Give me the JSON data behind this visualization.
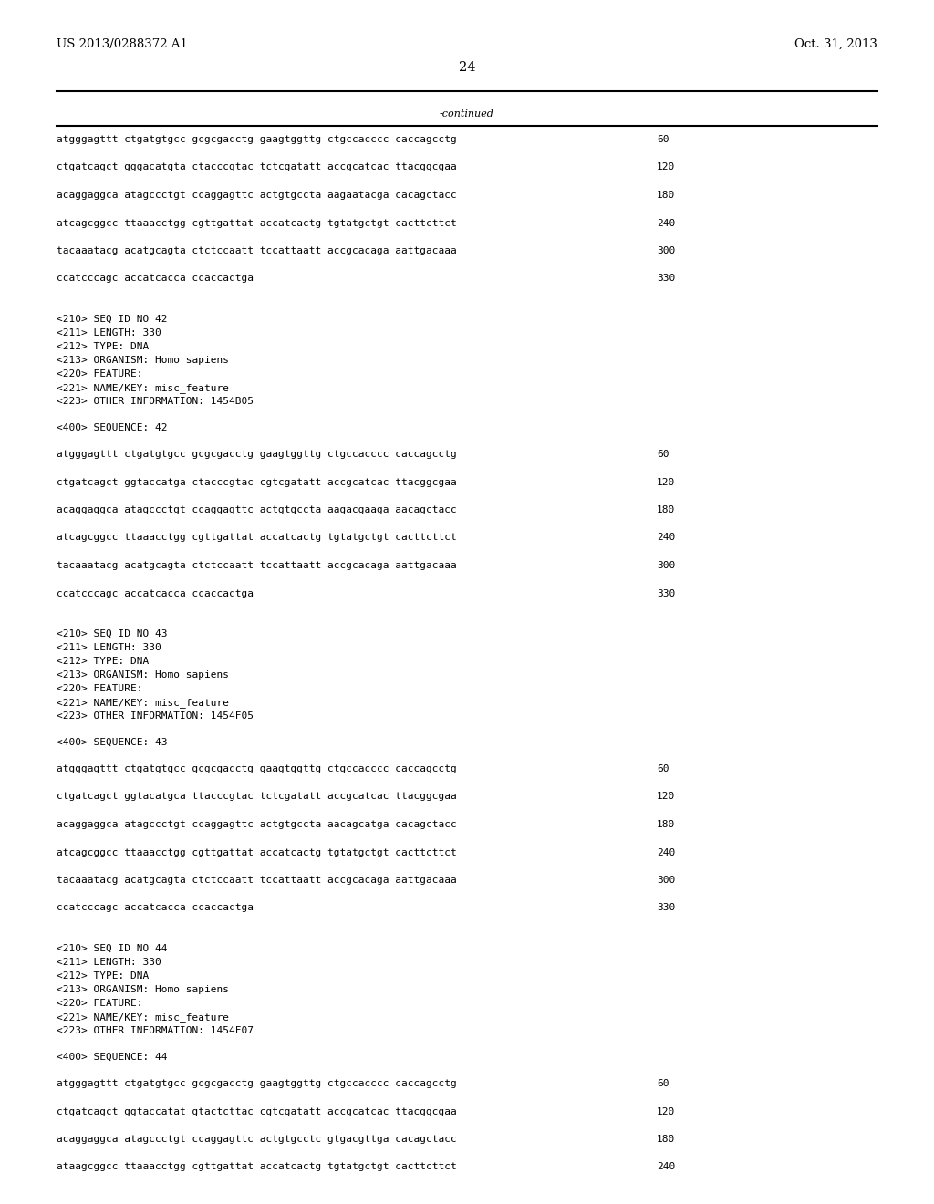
{
  "background_color": "#ffffff",
  "header_left": "US 2013/0288372 A1",
  "header_right": "Oct. 31, 2013",
  "page_number": "24",
  "continued_label": "-continued",
  "font_size_header": 9.5,
  "font_size_body": 8.0,
  "font_size_page": 10.5,
  "content": [
    {
      "type": "seq_line",
      "text": "atgggagttt ctgatgtgcc gcgcgacctg gaagtggttg ctgccacccc caccagcctg",
      "num": "60"
    },
    {
      "type": "seq_blank"
    },
    {
      "type": "seq_line",
      "text": "ctgatcagct gggacatgta ctacccgtac tctcgatatt accgcatcac ttacggcgaa",
      "num": "120"
    },
    {
      "type": "seq_blank"
    },
    {
      "type": "seq_line",
      "text": "acaggaggca atagccctgt ccaggagttc actgtgccta aagaatacga cacagctacc",
      "num": "180"
    },
    {
      "type": "seq_blank"
    },
    {
      "type": "seq_line",
      "text": "atcagcggcc ttaaacctgg cgttgattat accatcactg tgtatgctgt cacttcttct",
      "num": "240"
    },
    {
      "type": "seq_blank"
    },
    {
      "type": "seq_line",
      "text": "tacaaatacg acatgcagta ctctccaatt tccattaatt accgcacaga aattgacaaa",
      "num": "300"
    },
    {
      "type": "seq_blank"
    },
    {
      "type": "seq_line",
      "text": "ccatcccagc accatcacca ccaccactga",
      "num": "330"
    },
    {
      "type": "blank"
    },
    {
      "type": "blank"
    },
    {
      "type": "meta_line",
      "text": "<210> SEQ ID NO 42"
    },
    {
      "type": "meta_line",
      "text": "<211> LENGTH: 330"
    },
    {
      "type": "meta_line",
      "text": "<212> TYPE: DNA"
    },
    {
      "type": "meta_line",
      "text": "<213> ORGANISM: Homo sapiens"
    },
    {
      "type": "meta_line",
      "text": "<220> FEATURE:"
    },
    {
      "type": "meta_line",
      "text": "<221> NAME/KEY: misc_feature"
    },
    {
      "type": "meta_line",
      "text": "<223> OTHER INFORMATION: 1454B05"
    },
    {
      "type": "blank"
    },
    {
      "type": "meta_line",
      "text": "<400> SEQUENCE: 42"
    },
    {
      "type": "blank"
    },
    {
      "type": "seq_line",
      "text": "atgggagttt ctgatgtgcc gcgcgacctg gaagtggttg ctgccacccc caccagcctg",
      "num": "60"
    },
    {
      "type": "seq_blank"
    },
    {
      "type": "seq_line",
      "text": "ctgatcagct ggtaccatga ctacccgtac cgtcgatatt accgcatcac ttacggcgaa",
      "num": "120"
    },
    {
      "type": "seq_blank"
    },
    {
      "type": "seq_line",
      "text": "acaggaggca atagccctgt ccaggagttc actgtgccta aagacgaaga aacagctacc",
      "num": "180"
    },
    {
      "type": "seq_blank"
    },
    {
      "type": "seq_line",
      "text": "atcagcggcc ttaaacctgg cgttgattat accatcactg tgtatgctgt cacttcttct",
      "num": "240"
    },
    {
      "type": "seq_blank"
    },
    {
      "type": "seq_line",
      "text": "tacaaatacg acatgcagta ctctccaatt tccattaatt accgcacaga aattgacaaa",
      "num": "300"
    },
    {
      "type": "seq_blank"
    },
    {
      "type": "seq_line",
      "text": "ccatcccagc accatcacca ccaccactga",
      "num": "330"
    },
    {
      "type": "blank"
    },
    {
      "type": "blank"
    },
    {
      "type": "meta_line",
      "text": "<210> SEQ ID NO 43"
    },
    {
      "type": "meta_line",
      "text": "<211> LENGTH: 330"
    },
    {
      "type": "meta_line",
      "text": "<212> TYPE: DNA"
    },
    {
      "type": "meta_line",
      "text": "<213> ORGANISM: Homo sapiens"
    },
    {
      "type": "meta_line",
      "text": "<220> FEATURE:"
    },
    {
      "type": "meta_line",
      "text": "<221> NAME/KEY: misc_feature"
    },
    {
      "type": "meta_line",
      "text": "<223> OTHER INFORMATION: 1454F05"
    },
    {
      "type": "blank"
    },
    {
      "type": "meta_line",
      "text": "<400> SEQUENCE: 43"
    },
    {
      "type": "blank"
    },
    {
      "type": "seq_line",
      "text": "atgggagttt ctgatgtgcc gcgcgacctg gaagtggttg ctgccacccc caccagcctg",
      "num": "60"
    },
    {
      "type": "seq_blank"
    },
    {
      "type": "seq_line",
      "text": "ctgatcagct ggtacatgca ttacccgtac tctcgatatt accgcatcac ttacggcgaa",
      "num": "120"
    },
    {
      "type": "seq_blank"
    },
    {
      "type": "seq_line",
      "text": "acaggaggca atagccctgt ccaggagttc actgtgccta aacagcatga cacagctacc",
      "num": "180"
    },
    {
      "type": "seq_blank"
    },
    {
      "type": "seq_line",
      "text": "atcagcggcc ttaaacctgg cgttgattat accatcactg tgtatgctgt cacttcttct",
      "num": "240"
    },
    {
      "type": "seq_blank"
    },
    {
      "type": "seq_line",
      "text": "tacaaatacg acatgcagta ctctccaatt tccattaatt accgcacaga aattgacaaa",
      "num": "300"
    },
    {
      "type": "seq_blank"
    },
    {
      "type": "seq_line",
      "text": "ccatcccagc accatcacca ccaccactga",
      "num": "330"
    },
    {
      "type": "blank"
    },
    {
      "type": "blank"
    },
    {
      "type": "meta_line",
      "text": "<210> SEQ ID NO 44"
    },
    {
      "type": "meta_line",
      "text": "<211> LENGTH: 330"
    },
    {
      "type": "meta_line",
      "text": "<212> TYPE: DNA"
    },
    {
      "type": "meta_line",
      "text": "<213> ORGANISM: Homo sapiens"
    },
    {
      "type": "meta_line",
      "text": "<220> FEATURE:"
    },
    {
      "type": "meta_line",
      "text": "<221> NAME/KEY: misc_feature"
    },
    {
      "type": "meta_line",
      "text": "<223> OTHER INFORMATION: 1454F07"
    },
    {
      "type": "blank"
    },
    {
      "type": "meta_line",
      "text": "<400> SEQUENCE: 44"
    },
    {
      "type": "blank"
    },
    {
      "type": "seq_line",
      "text": "atgggagttt ctgatgtgcc gcgcgacctg gaagtggttg ctgccacccc caccagcctg",
      "num": "60"
    },
    {
      "type": "seq_blank"
    },
    {
      "type": "seq_line",
      "text": "ctgatcagct ggtaccatat gtactcttac cgtcgatatt accgcatcac ttacggcgaa",
      "num": "120"
    },
    {
      "type": "seq_blank"
    },
    {
      "type": "seq_line",
      "text": "acaggaggca atagccctgt ccaggagttc actgtgcctc gtgacgttga cacagctacc",
      "num": "180"
    },
    {
      "type": "seq_blank"
    },
    {
      "type": "seq_line",
      "text": "ataagcggcc ttaaacctgg cgttgattat accatcactg tgtatgctgt cacttcttct",
      "num": "240"
    }
  ]
}
